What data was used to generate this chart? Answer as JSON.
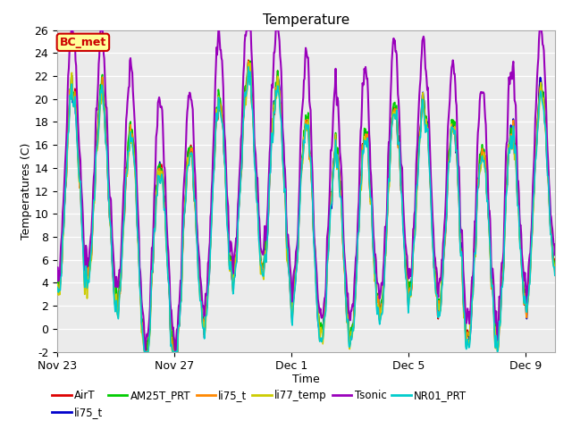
{
  "title": "Temperature",
  "xlabel": "Time",
  "ylabel": "Temperatures (C)",
  "ylim": [
    -2,
    26
  ],
  "yticks": [
    -2,
    0,
    2,
    4,
    6,
    8,
    10,
    12,
    14,
    16,
    18,
    20,
    22,
    24,
    26
  ],
  "plot_background": "#ebebeb",
  "grid_color": "#ffffff",
  "annotation_text": "BC_met",
  "annotation_color": "#cc0000",
  "annotation_bg": "#ffff99",
  "series": [
    {
      "name": "AirT",
      "color": "#dd0000",
      "lw": 1.2
    },
    {
      "name": "li75_t",
      "color": "#0000cc",
      "lw": 1.2
    },
    {
      "name": "AM25T_PRT",
      "color": "#00cc00",
      "lw": 1.2
    },
    {
      "name": "li75_t",
      "color": "#ff8800",
      "lw": 1.2
    },
    {
      "name": "li77_temp",
      "color": "#cccc00",
      "lw": 1.2
    },
    {
      "name": "Tsonic",
      "color": "#9900bb",
      "lw": 1.5
    },
    {
      "name": "NR01_PRT",
      "color": "#00cccc",
      "lw": 1.2
    }
  ],
  "xtick_labels": [
    "Nov 23",
    "Nov 27",
    "Dec 1",
    "Dec 5",
    "Dec 9"
  ],
  "xtick_positions": [
    0,
    4,
    8,
    12,
    16
  ],
  "num_days": 17,
  "seed": 7
}
